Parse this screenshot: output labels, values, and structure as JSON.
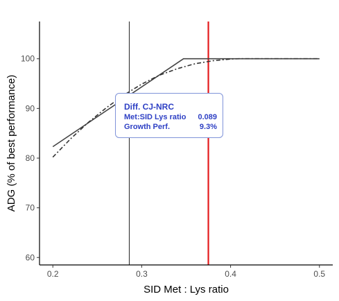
{
  "chart_data": {
    "type": "line",
    "xlabel": "SID Met : Lys ratio",
    "ylabel": "ADG (% of best performance)",
    "xlim": [
      0.185,
      0.515
    ],
    "ylim": [
      58.5,
      107.5
    ],
    "x_ticks": [
      0.2,
      0.3,
      0.4,
      0.5
    ],
    "x_tick_labels": [
      "0.2",
      "0.3",
      "0.4",
      "0.5"
    ],
    "y_ticks": [
      60,
      70,
      80,
      90,
      100
    ],
    "y_tick_labels": [
      "60",
      "70",
      "80",
      "90",
      "100"
    ],
    "grid": false,
    "series": [
      {
        "style": "solid",
        "color": "#444444",
        "x": [
          0.2,
          0.347,
          0.5
        ],
        "y": [
          82.3,
          100,
          100
        ]
      },
      {
        "style": "dashed",
        "color": "#333333",
        "x": [
          0.2,
          0.22,
          0.24,
          0.26,
          0.28,
          0.3,
          0.32,
          0.34,
          0.36,
          0.38,
          0.4,
          0.41,
          0.45,
          0.5
        ],
        "y": [
          80.2,
          83.9,
          87.2,
          90.1,
          92.7,
          94.9,
          96.7,
          98.0,
          99.0,
          99.6,
          99.95,
          100,
          100,
          100
        ]
      }
    ],
    "vlines": [
      {
        "x": 0.286,
        "color": "#222222",
        "width": 1
      },
      {
        "x": 0.375,
        "color": "#e41a1c",
        "width": 2.2
      }
    ]
  },
  "tooltip": {
    "title": "Diff. CJ-NRC",
    "rows": [
      {
        "label": "Met:SID Lys ratio",
        "value": "0.089"
      },
      {
        "label": "Growth Perf.",
        "value": "9.3%"
      }
    ]
  }
}
